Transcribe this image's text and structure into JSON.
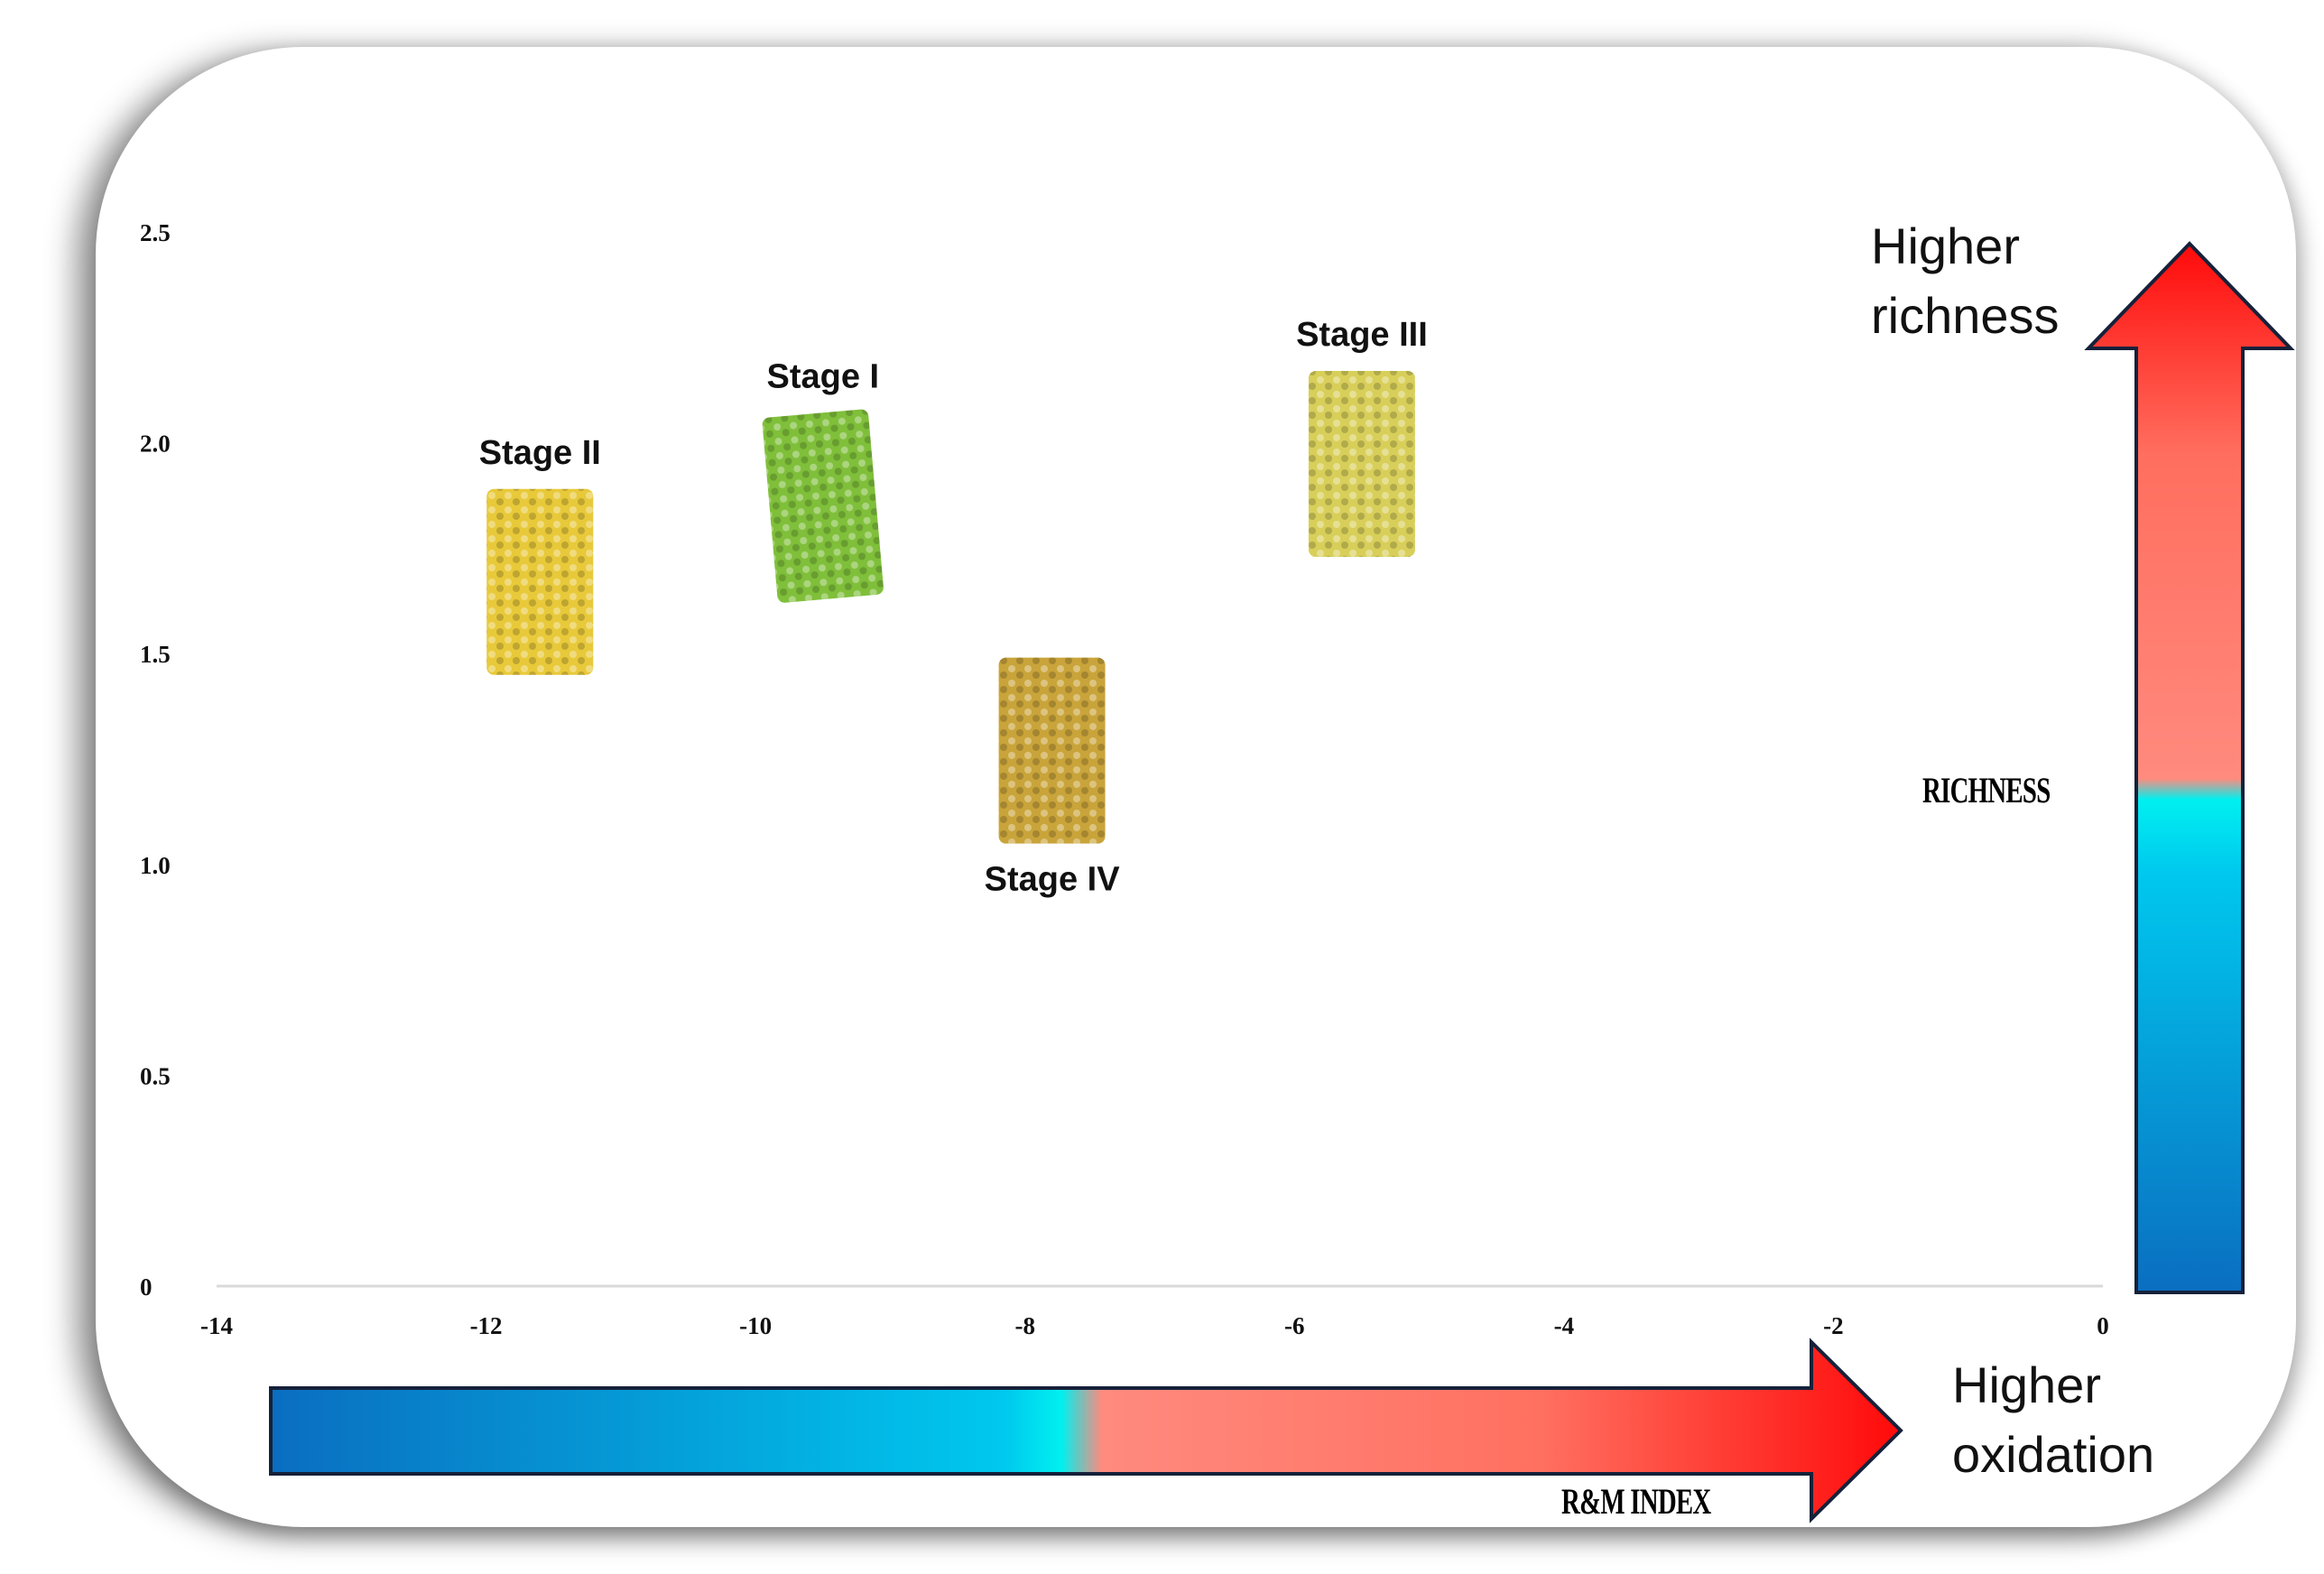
{
  "chart_data": {
    "type": "scatter",
    "title": "",
    "xlabel": "R&M INDEX",
    "ylabel": "RICHNESS",
    "xlim": [
      -14,
      0
    ],
    "ylim": [
      0,
      2.5
    ],
    "x_ticks": [
      "-14",
      "-12",
      "-10",
      "-8",
      "-6",
      "-4",
      "-2",
      "0"
    ],
    "y_ticks": [
      "0",
      "0.5",
      "1.0",
      "1.5",
      "2.0",
      "2.5"
    ],
    "grid": false,
    "points": [
      {
        "label": "Stage II",
        "x": -11.6,
        "y": 1.67,
        "color": "#e8c93a",
        "label_position": "above"
      },
      {
        "label": "Stage I",
        "x": -9.5,
        "y": 1.85,
        "color": "#7fbf3a",
        "label_position": "above"
      },
      {
        "label": "Stage IV",
        "x": -7.8,
        "y": 1.27,
        "color": "#c9a43a",
        "label_position": "below"
      },
      {
        "label": "Stage III",
        "x": -5.5,
        "y": 1.95,
        "color": "#d8cf5a",
        "label_position": "above"
      }
    ]
  },
  "annotations": {
    "y_arrow_text_line1": "Higher",
    "y_arrow_text_line2": "richness",
    "x_arrow_text_line1": "Higher",
    "x_arrow_text_line2": "oxidation"
  },
  "colors": {
    "arrow_blue_dark": "#0a6ec0",
    "arrow_cyan": "#00e6f0",
    "arrow_salmon": "#ff7a70",
    "arrow_red": "#ff1414",
    "arrow_outline": "#16213a"
  }
}
